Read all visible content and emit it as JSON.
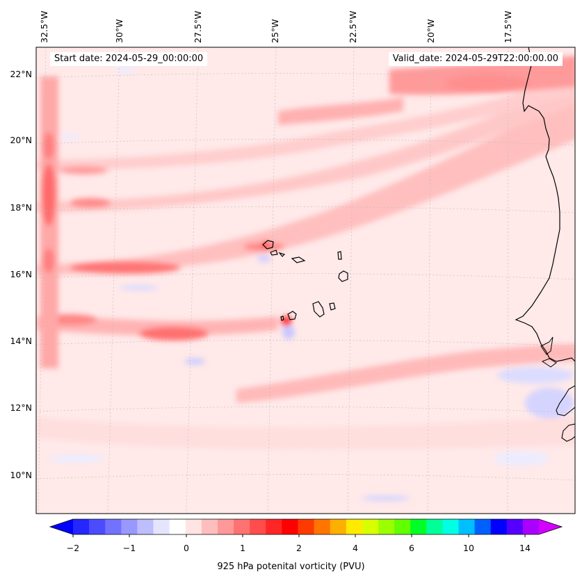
{
  "header": {
    "start_date": "Start date: 2024-05-29_00:00:00",
    "valid_date": "Valid_date: 2024-05-29T22:00:00.00"
  },
  "map": {
    "longitude_labels": [
      "32.5°W",
      "30°W",
      "27.5°W",
      "25°W",
      "22.5°W",
      "20°W",
      "17.5°W"
    ],
    "latitude_labels": [
      "22°N",
      "20°N",
      "18°N",
      "16°N",
      "14°N",
      "12°N",
      "10°N"
    ],
    "background_color": "#ffe9e9",
    "coastline_color": "#000000"
  },
  "colorbar": {
    "label": "925 hPa potenital vorticity (PVU)",
    "tick_labels": [
      "−2",
      "−1",
      "0",
      "1",
      "2",
      "4",
      "6",
      "10",
      "14"
    ],
    "colors": [
      "#0000ff",
      "#2626ff",
      "#4c4cff",
      "#7272ff",
      "#9898ff",
      "#bebeff",
      "#e4e4ff",
      "#ffffff",
      "#ffe4e4",
      "#ffbebe",
      "#ff9898",
      "#ff7272",
      "#ff4c4c",
      "#ff2626",
      "#ff0000",
      "#ff3a00",
      "#ff7500",
      "#ffaf00",
      "#ffea00",
      "#d8ff00",
      "#9cff00",
      "#62ff00",
      "#00ff27",
      "#00ff99",
      "#00ffe3",
      "#00bfff",
      "#0060ff",
      "#0000ff",
      "#5500ff",
      "#aa00ff",
      "#d400ff"
    ]
  }
}
